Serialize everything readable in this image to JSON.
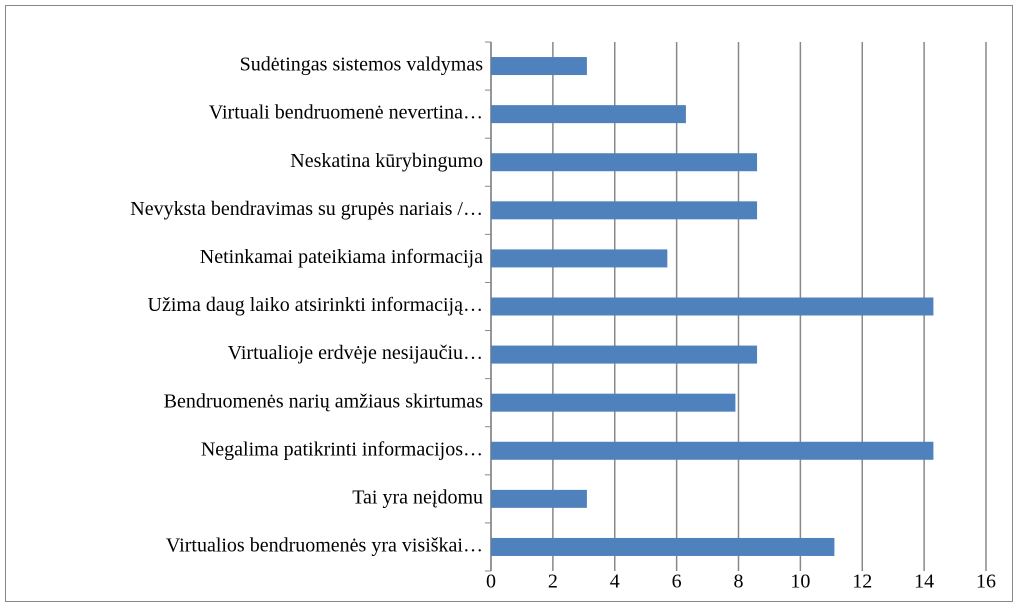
{
  "chart_data": {
    "type": "barh",
    "categories": [
      "Sudėtingas sistemos valdymas",
      "Virtuali bendruomenė nevertina…",
      "Neskatina kūrybingumo",
      "Nevyksta bendravimas su grupės nariais /…",
      "Netinkamai pateikiama informacija",
      "Užima daug laiko atsirinkti informaciją…",
      "Virtualioje erdvėje nesijaučiu…",
      "Bendruomenės narių amžiaus skirtumas",
      "Negalima patikrinti informacijos…",
      "Tai yra neįdomu",
      "Virtualios bendruomenės yra visiškai…"
    ],
    "values": [
      3.1,
      6.3,
      8.6,
      8.6,
      5.7,
      14.3,
      8.6,
      7.9,
      14.3,
      3.1,
      11.1
    ],
    "color": "#4f81bd",
    "xlim": [
      0,
      16
    ],
    "xticks": [
      0,
      2,
      4,
      6,
      8,
      10,
      12,
      14,
      16
    ],
    "grid": true
  }
}
